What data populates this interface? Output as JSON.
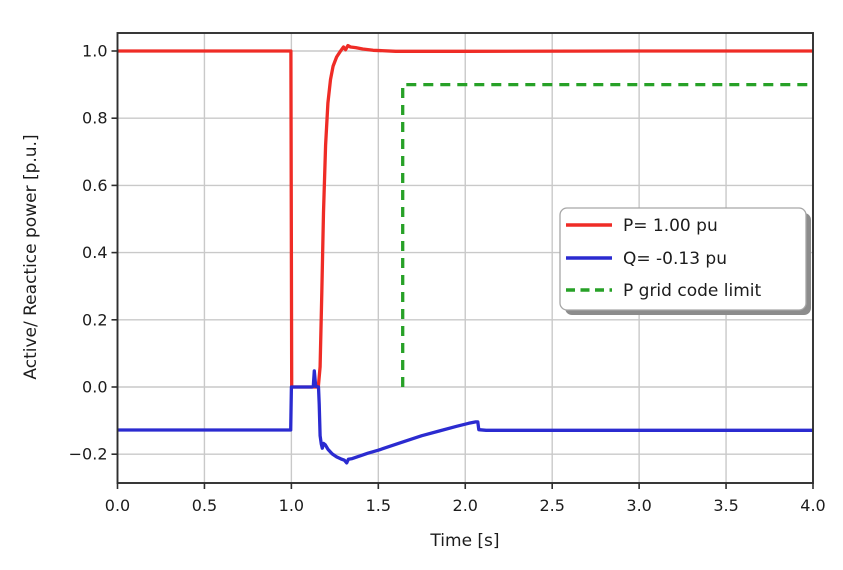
{
  "chart_data": {
    "type": "line",
    "title": "",
    "xlabel": "Time [s]",
    "ylabel": "Active/ Reactice power [p.u.]",
    "xlim": [
      0.0,
      4.0
    ],
    "ylim": [
      -0.286,
      1.054
    ],
    "grid": true,
    "x_ticks": [
      "0.0",
      "0.5",
      "1.0",
      "1.5",
      "2.0",
      "2.5",
      "3.0",
      "3.5",
      "4.0"
    ],
    "x_tick_values": [
      0.0,
      0.5,
      1.0,
      1.5,
      2.0,
      2.5,
      3.0,
      3.5,
      4.0
    ],
    "y_ticks": [
      "1.0",
      "0.8",
      "0.6",
      "0.4",
      "0.2",
      "0.0",
      "−0.2"
    ],
    "y_tick_values": [
      1.0,
      0.8,
      0.6,
      0.4,
      0.2,
      0.0,
      -0.2
    ],
    "legend": {
      "position": "center right",
      "entries": [
        {
          "label": "P= 1.00 pu",
          "color": "#ef2c26",
          "style": "solid"
        },
        {
          "label": "Q= -0.13 pu",
          "color": "#2b2bd0",
          "style": "solid"
        },
        {
          "label": "P grid code limit",
          "color": "#27a127",
          "style": "dashed"
        }
      ]
    },
    "series": [
      {
        "name": "P",
        "color": "#ef2c26",
        "style": "solid",
        "points": [
          [
            0.0,
            1.0
          ],
          [
            0.997,
            1.0
          ],
          [
            1.002,
            0.0
          ],
          [
            1.155,
            0.0
          ],
          [
            1.165,
            0.06
          ],
          [
            1.175,
            0.28
          ],
          [
            1.185,
            0.52
          ],
          [
            1.197,
            0.72
          ],
          [
            1.21,
            0.845
          ],
          [
            1.225,
            0.915
          ],
          [
            1.24,
            0.955
          ],
          [
            1.26,
            0.982
          ],
          [
            1.28,
            0.998
          ],
          [
            1.3,
            1.012
          ],
          [
            1.312,
            1.004
          ],
          [
            1.325,
            1.016
          ],
          [
            1.34,
            1.012
          ],
          [
            1.37,
            1.01
          ],
          [
            1.41,
            1.006
          ],
          [
            1.47,
            1.002
          ],
          [
            1.6,
            0.999
          ],
          [
            2.0,
            0.999
          ],
          [
            3.0,
            1.0
          ],
          [
            4.0,
            1.0
          ]
        ]
      },
      {
        "name": "Q",
        "color": "#2b2bd0",
        "style": "solid",
        "points": [
          [
            0.0,
            -0.128
          ],
          [
            0.996,
            -0.128
          ],
          [
            1.0,
            0.0
          ],
          [
            1.118,
            0.0
          ],
          [
            1.126,
            0.002
          ],
          [
            1.132,
            0.048
          ],
          [
            1.14,
            0.002
          ],
          [
            1.156,
            0.0
          ],
          [
            1.16,
            -0.05
          ],
          [
            1.165,
            -0.145
          ],
          [
            1.172,
            -0.17
          ],
          [
            1.178,
            -0.182
          ],
          [
            1.185,
            -0.168
          ],
          [
            1.195,
            -0.172
          ],
          [
            1.21,
            -0.185
          ],
          [
            1.235,
            -0.199
          ],
          [
            1.26,
            -0.208
          ],
          [
            1.285,
            -0.214
          ],
          [
            1.305,
            -0.218
          ],
          [
            1.318,
            -0.226
          ],
          [
            1.328,
            -0.215
          ],
          [
            1.35,
            -0.213
          ],
          [
            1.39,
            -0.206
          ],
          [
            1.44,
            -0.197
          ],
          [
            1.5,
            -0.188
          ],
          [
            1.57,
            -0.176
          ],
          [
            1.65,
            -0.162
          ],
          [
            1.75,
            -0.145
          ],
          [
            1.85,
            -0.131
          ],
          [
            1.95,
            -0.117
          ],
          [
            2.02,
            -0.108
          ],
          [
            2.06,
            -0.104
          ],
          [
            2.072,
            -0.104
          ],
          [
            2.078,
            -0.127
          ],
          [
            2.12,
            -0.129
          ],
          [
            3.0,
            -0.129
          ],
          [
            4.0,
            -0.129
          ]
        ]
      },
      {
        "name": "P grid code limit",
        "color": "#27a127",
        "style": "dashed",
        "points": [
          [
            1.64,
            0.0
          ],
          [
            1.64,
            0.9
          ],
          [
            4.0,
            0.9
          ]
        ]
      }
    ],
    "colors": {
      "background": "#ffffff",
      "grid": "#c9c9c9",
      "frame": "#2e2e2e",
      "text": "#1c1c1c",
      "legend_border": "#a6a6a6",
      "legend_shadow": "#8c8c8c"
    }
  }
}
